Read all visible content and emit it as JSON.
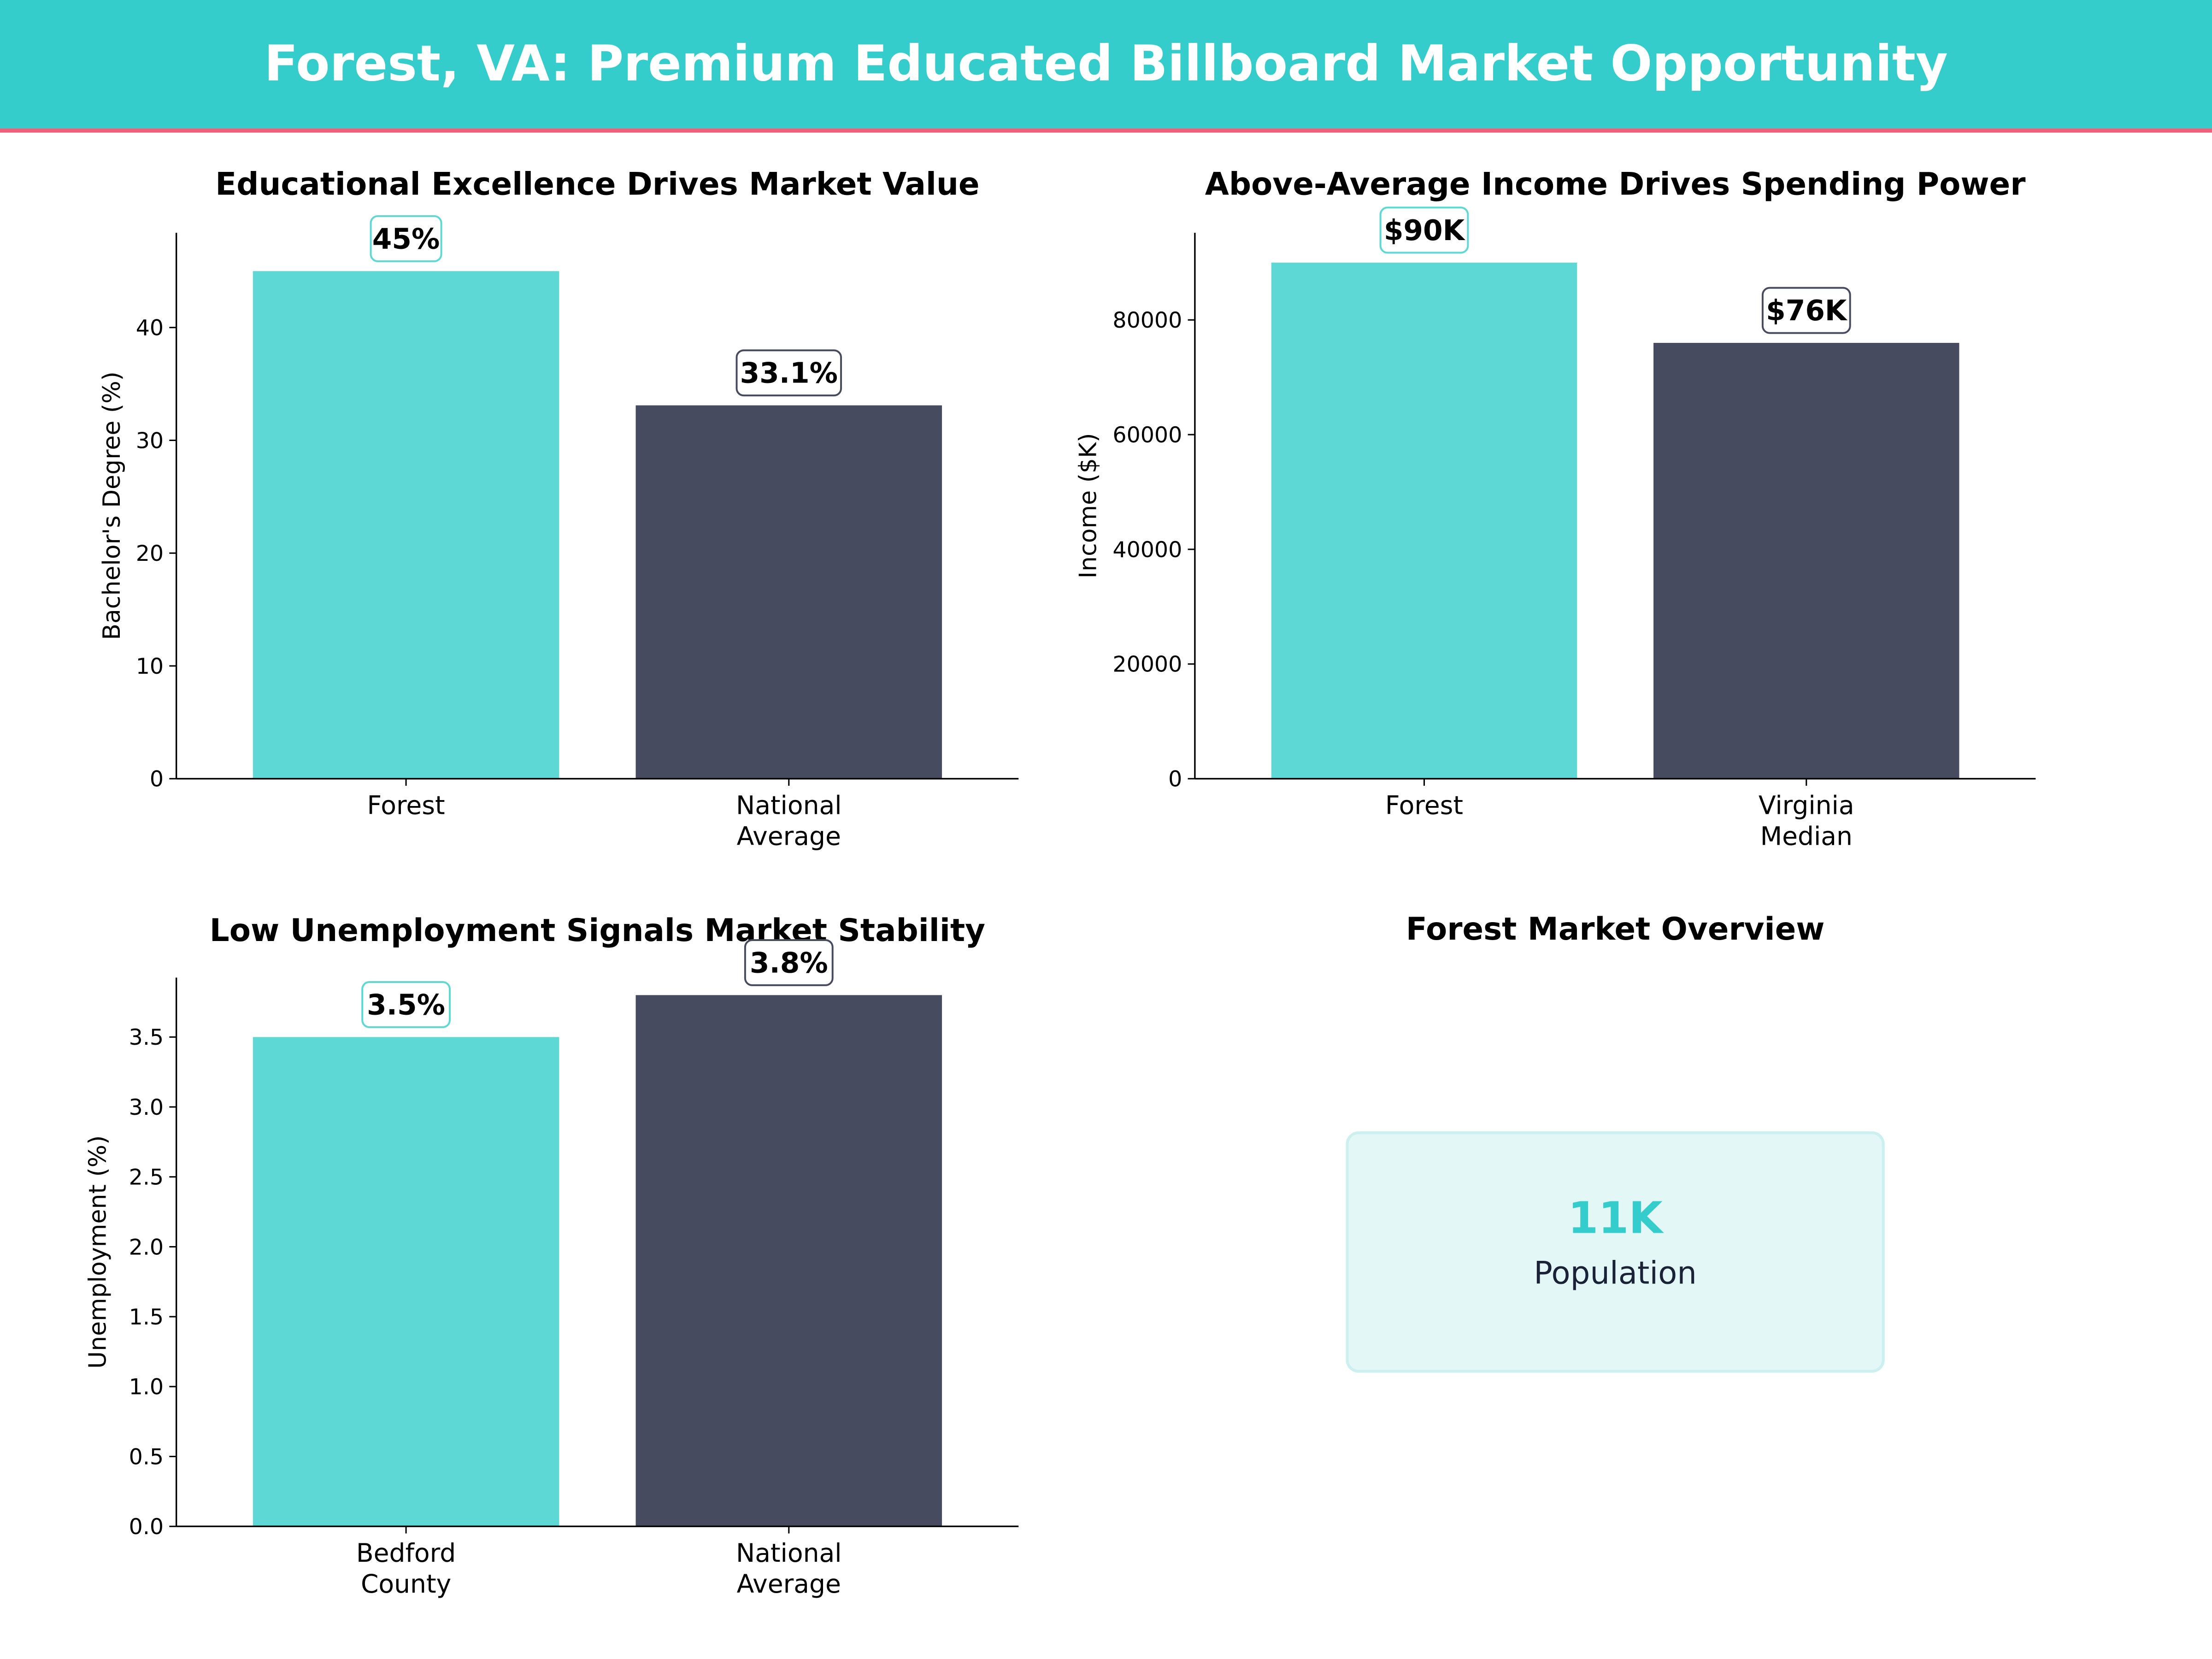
{
  "header": {
    "title": "Forest, VA: Premium Educated Billboard Market Opportunity",
    "bg_color": "#35CCCC",
    "accent_line_color": "#EF6079"
  },
  "colors": {
    "primary": "#5DD8D5",
    "secondary": "#474B60"
  },
  "chart_data": [
    {
      "type": "bar",
      "title": "Educational Excellence Drives Market Value",
      "ylabel": "Bachelor's Degree (%)",
      "xlabel": "",
      "categories": [
        [
          "Forest"
        ],
        [
          "National",
          "Average"
        ]
      ],
      "values": [
        45,
        33.1
      ],
      "data_labels": [
        "45%",
        "33.1%"
      ],
      "yticks": [
        0,
        10,
        20,
        30,
        40
      ],
      "ytick_labels": [
        "0",
        "10",
        "20",
        "30",
        "40"
      ],
      "ylim": [
        0,
        48.4
      ],
      "grid": false
    },
    {
      "type": "bar",
      "title": "Above-Average Income Drives Spending Power",
      "ylabel": "Income ($K)",
      "xlabel": "",
      "categories": [
        [
          "Forest"
        ],
        [
          "Virginia",
          "Median"
        ]
      ],
      "values": [
        90000,
        76000
      ],
      "data_labels": [
        "$90K",
        "$76K"
      ],
      "yticks": [
        0,
        20000,
        40000,
        60000,
        80000
      ],
      "ytick_labels": [
        "0",
        "20000",
        "40000",
        "60000",
        "80000"
      ],
      "ylim": [
        0,
        95200
      ],
      "grid": false
    },
    {
      "type": "bar",
      "title": "Low Unemployment Signals Market Stability",
      "ylabel": "Unemployment (%)",
      "xlabel": "",
      "categories": [
        [
          "Bedford",
          "County"
        ],
        [
          "National",
          "Average"
        ]
      ],
      "values": [
        3.5,
        3.8
      ],
      "data_labels": [
        "3.5%",
        "3.8%"
      ],
      "yticks": [
        0,
        0.5,
        1,
        1.5,
        2,
        2.5,
        3,
        3.5
      ],
      "ytick_labels": [
        "0.0",
        "0.5",
        "1.0",
        "1.5",
        "2.0",
        "2.5",
        "3.0",
        "3.5"
      ],
      "ylim": [
        0,
        3.925
      ],
      "grid": false
    }
  ],
  "overview": {
    "title": "Forest Market Overview",
    "value": "11K",
    "label": "Population"
  }
}
